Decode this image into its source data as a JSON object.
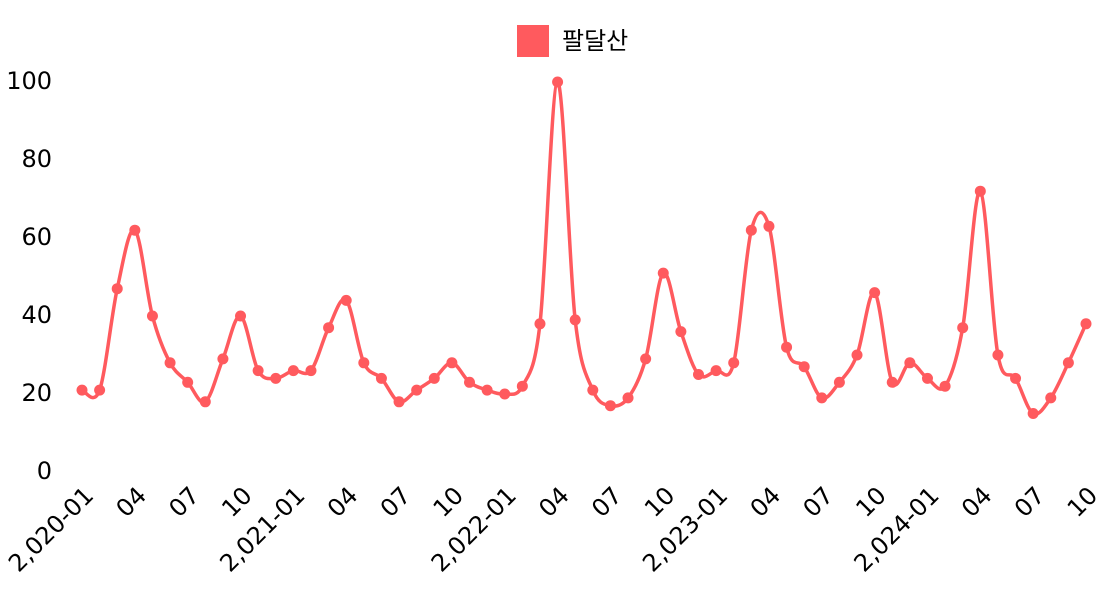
{
  "chart_data": {
    "type": "line",
    "categories": [
      "2,020-01",
      null,
      null,
      "04",
      null,
      null,
      "07",
      null,
      null,
      "10",
      null,
      null,
      "2,021-01",
      null,
      null,
      "04",
      null,
      null,
      "07",
      null,
      null,
      "10",
      null,
      null,
      "2,022-01",
      null,
      null,
      "04",
      null,
      null,
      "07",
      null,
      null,
      "10",
      null,
      null,
      "2,023-01",
      null,
      null,
      "04",
      null,
      null,
      "07",
      null,
      null,
      "10",
      null,
      null,
      "2,024-01",
      null,
      null,
      "04",
      null,
      null,
      "07",
      null,
      null,
      "10"
    ],
    "series": [
      {
        "name": "팔달산",
        "color": "#ff5a5e",
        "values": [
          21,
          21,
          47,
          62,
          40,
          28,
          23,
          18,
          29,
          40,
          26,
          24,
          26,
          26,
          37,
          44,
          28,
          24,
          18,
          21,
          24,
          28,
          23,
          21,
          20,
          22,
          38,
          100,
          39,
          21,
          17,
          19,
          29,
          51,
          36,
          25,
          26,
          28,
          62,
          63,
          32,
          27,
          19,
          23,
          30,
          46,
          23,
          28,
          24,
          22,
          37,
          72,
          30,
          24,
          15,
          19,
          28,
          38
        ]
      }
    ],
    "ylim": [
      0,
      100
    ],
    "yticks": [
      0,
      20,
      40,
      60,
      80,
      100
    ],
    "grid": false,
    "legend": "top"
  }
}
